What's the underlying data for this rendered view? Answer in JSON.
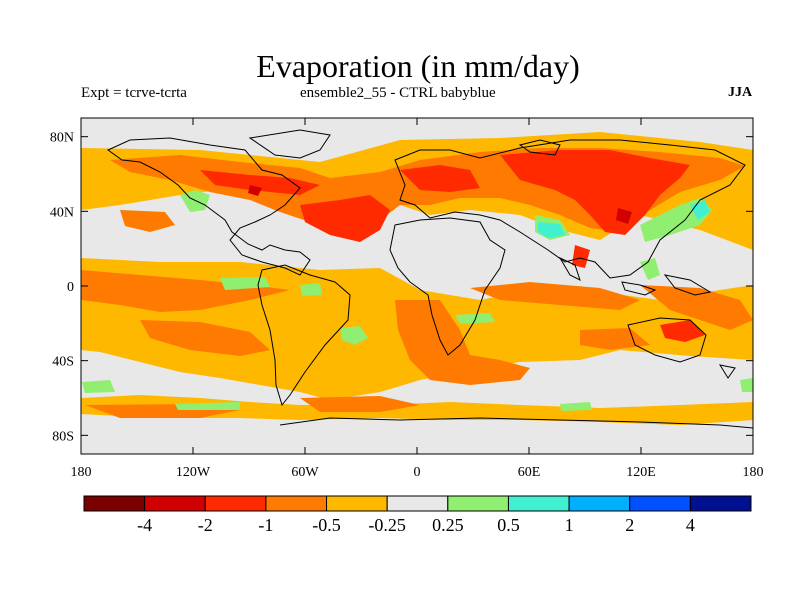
{
  "title": "Evaporation (in mm/day)",
  "subtitle_left": "Expt = tcrve-tcrta",
  "subtitle_center": "ensemble2_55 - CTRL babyblue",
  "subtitle_right": "JJA",
  "lat_ticks": [
    {
      "value": 80,
      "label": "80N"
    },
    {
      "value": 40,
      "label": "40N"
    },
    {
      "value": 0,
      "label": "0"
    },
    {
      "value": -40,
      "label": "40S"
    },
    {
      "value": -80,
      "label": "80S"
    }
  ],
  "lon_ticks": [
    {
      "value": -180,
      "label": "180"
    },
    {
      "value": -120,
      "label": "120W"
    },
    {
      "value": -60,
      "label": "60W"
    },
    {
      "value": 0,
      "label": "0"
    },
    {
      "value": 60,
      "label": "60E"
    },
    {
      "value": 120,
      "label": "120E"
    },
    {
      "value": 180,
      "label": "180"
    }
  ],
  "colorbar": {
    "colors": [
      "#7a0000",
      "#d00000",
      "#ff2a00",
      "#ff7a00",
      "#ffb800",
      "#e8e8e8",
      "#90ee70",
      "#40f0d0",
      "#00b0ff",
      "#0050ff",
      "#001090"
    ],
    "labels": [
      "-4",
      "-2",
      "-1",
      "-0.5",
      "-0.25",
      "0.25",
      "0.5",
      "1",
      "2",
      "4"
    ]
  },
  "colors": {
    "neutral": "#e8e8e8",
    "light_negative": "#ffb800",
    "moderate_negative": "#ff7a00",
    "strong_negative": "#ff2a00",
    "very_strong_negative": "#d00000",
    "light_positive": "#90ee70",
    "moderate_positive": "#40f0d0"
  }
}
